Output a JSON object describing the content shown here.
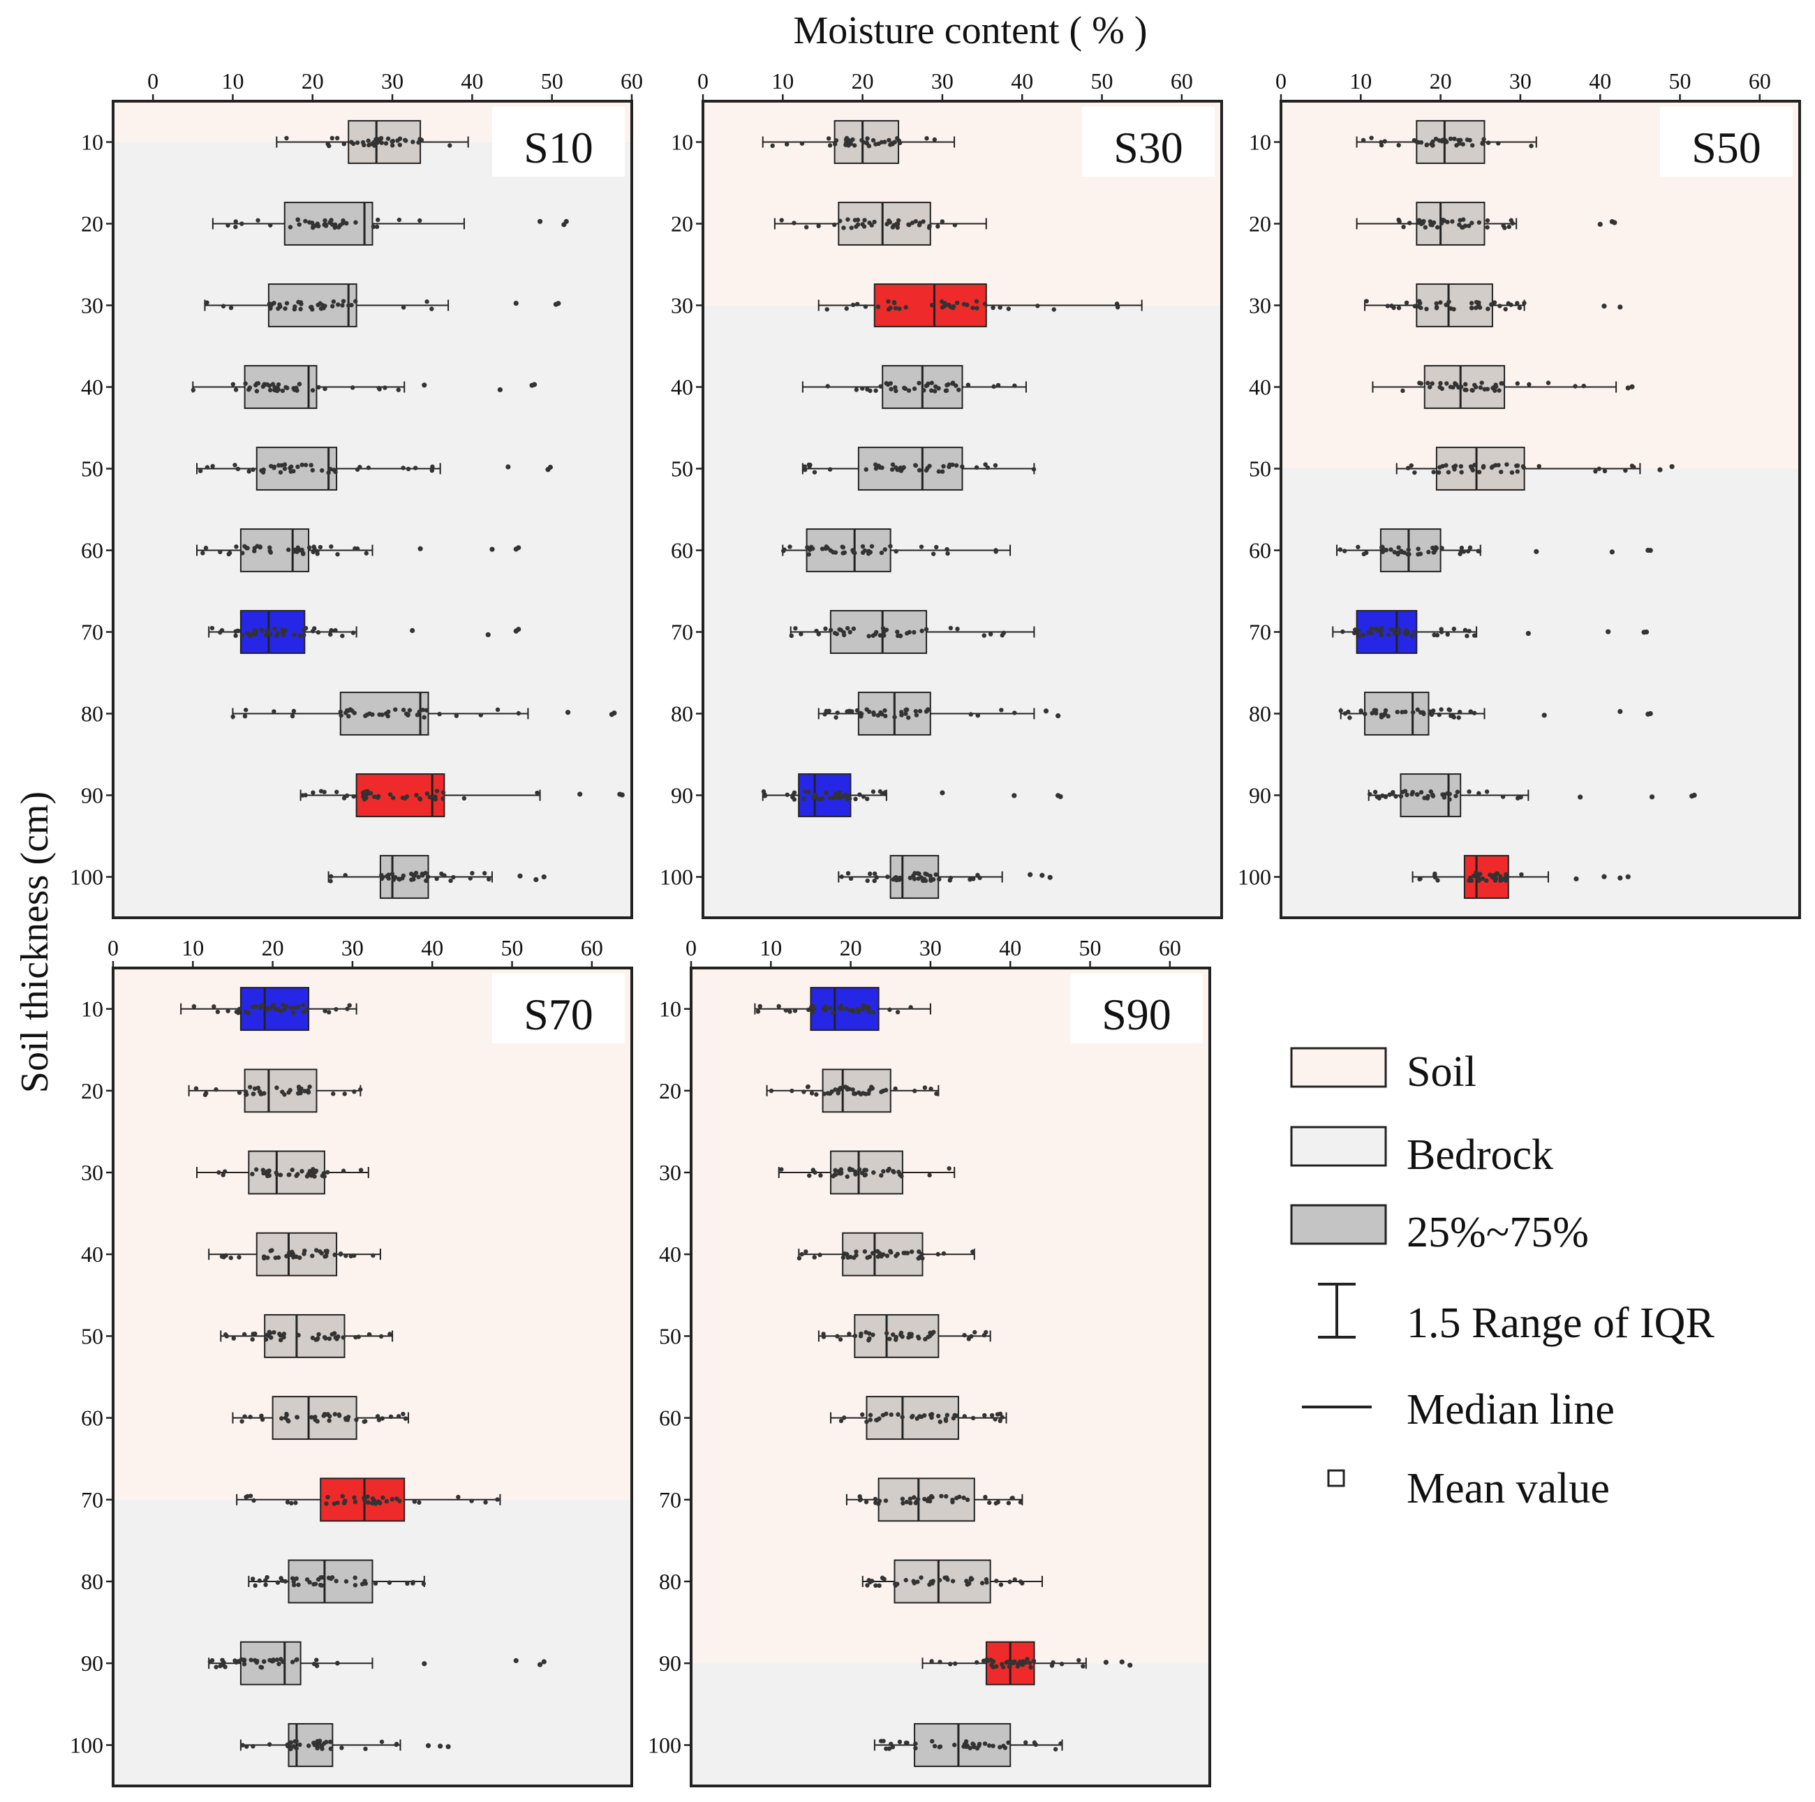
{
  "figure": {
    "x_axis_title": "Moisture content ( % )",
    "y_axis_title": "Soil thickness (cm)"
  },
  "legend": {
    "items": [
      {
        "key": "soil",
        "label": "Soil"
      },
      {
        "key": "bedrock",
        "label": "Bedrock"
      },
      {
        "key": "iqr",
        "label": "25%~75%"
      },
      {
        "key": "whisker",
        "label": "1.5 Range of IQR"
      },
      {
        "key": "median",
        "label": "Median line"
      },
      {
        "key": "mean",
        "label": "Mean value"
      }
    ]
  },
  "colors": {
    "soil_bg": "#fdf3ee",
    "bedrock_bg": "#f1f1f1",
    "box_soil": "#d3cdc9",
    "box_bedrock": "#c4c4c4",
    "box_max": "#ee2a2a",
    "box_min": "#2626e6",
    "dot": "#333333",
    "frame": "#222222"
  },
  "chart_data": [
    {
      "type": "box",
      "title": "S10",
      "xlabel": "Moisture content ( % )",
      "ylabel": "Soil thickness (cm)",
      "xlim": [
        -5,
        60
      ],
      "xticks": [
        0,
        10,
        20,
        30,
        40,
        50,
        60
      ],
      "depths": [
        10,
        20,
        30,
        40,
        50,
        60,
        70,
        80,
        90,
        100
      ],
      "soil_bedrock_boundary_cm": 10,
      "boxes": [
        {
          "depth": 10,
          "whisker_low": 15.5,
          "q1": 24.5,
          "median": 28,
          "q3": 33.5,
          "whisker_high": 39.5,
          "outliers": [],
          "highlight": "none",
          "layer": "soil"
        },
        {
          "depth": 20,
          "whisker_low": 7.5,
          "q1": 16.5,
          "median": 26.5,
          "q3": 27.5,
          "whisker_high": 39,
          "outliers": [
            48.5,
            51.5,
            51.8
          ],
          "highlight": "none",
          "layer": "bedrock"
        },
        {
          "depth": 30,
          "whisker_low": 6.5,
          "q1": 14.5,
          "median": 24.5,
          "q3": 25.5,
          "whisker_high": 37,
          "outliers": [
            45.5,
            50.5,
            50.8
          ],
          "highlight": "none",
          "layer": "bedrock"
        },
        {
          "depth": 40,
          "whisker_low": 5,
          "q1": 11.5,
          "median": 19.5,
          "q3": 20.5,
          "whisker_high": 31.5,
          "outliers": [
            34,
            43.5,
            47.5,
            47.8
          ],
          "highlight": "none",
          "layer": "bedrock"
        },
        {
          "depth": 50,
          "whisker_low": 5.5,
          "q1": 13,
          "median": 22,
          "q3": 23,
          "whisker_high": 36,
          "outliers": [
            44.5,
            49.5,
            49.8
          ],
          "highlight": "none",
          "layer": "bedrock"
        },
        {
          "depth": 60,
          "whisker_low": 5.5,
          "q1": 11,
          "median": 17.5,
          "q3": 19.5,
          "whisker_high": 27.5,
          "outliers": [
            33.5,
            42.5,
            45.5,
            45.8
          ],
          "highlight": "none",
          "layer": "bedrock"
        },
        {
          "depth": 70,
          "whisker_low": 7,
          "q1": 11,
          "median": 14.5,
          "q3": 19,
          "whisker_high": 25.5,
          "outliers": [
            32.5,
            42,
            45.5,
            45.8
          ],
          "highlight": "min",
          "layer": "bedrock"
        },
        {
          "depth": 80,
          "whisker_low": 10,
          "q1": 23.5,
          "median": 33.5,
          "q3": 34.5,
          "whisker_high": 47,
          "outliers": [
            52,
            57.5,
            57.8
          ],
          "highlight": "none",
          "layer": "bedrock"
        },
        {
          "depth": 90,
          "whisker_low": 18.5,
          "q1": 25.5,
          "median": 35,
          "q3": 36.5,
          "whisker_high": 48.5,
          "outliers": [
            53.5,
            58.5,
            58.8
          ],
          "highlight": "max",
          "layer": "bedrock"
        },
        {
          "depth": 100,
          "whisker_low": 22,
          "q1": 28.5,
          "median": 30,
          "q3": 34.5,
          "whisker_high": 42.5,
          "outliers": [
            46,
            48,
            49
          ],
          "highlight": "none",
          "layer": "bedrock"
        }
      ]
    },
    {
      "type": "box",
      "title": "S30",
      "xlabel": "Moisture content ( % )",
      "ylabel": "Soil thickness (cm)",
      "xlim": [
        0,
        65
      ],
      "xticks": [
        0,
        10,
        20,
        30,
        40,
        50,
        60
      ],
      "depths": [
        10,
        20,
        30,
        40,
        50,
        60,
        70,
        80,
        90,
        100
      ],
      "soil_bedrock_boundary_cm": 30,
      "boxes": [
        {
          "depth": 10,
          "whisker_low": 7.5,
          "q1": 16.5,
          "median": 20,
          "q3": 24.5,
          "whisker_high": 31.5,
          "outliers": [],
          "highlight": "none",
          "layer": "soil"
        },
        {
          "depth": 20,
          "whisker_low": 9,
          "q1": 17,
          "median": 22.5,
          "q3": 28.5,
          "whisker_high": 35.5,
          "outliers": [],
          "highlight": "none",
          "layer": "soil"
        },
        {
          "depth": 30,
          "whisker_low": 14.5,
          "q1": 21.5,
          "median": 29,
          "q3": 35.5,
          "whisker_high": 55,
          "outliers": [],
          "highlight": "max",
          "layer": "soil"
        },
        {
          "depth": 40,
          "whisker_low": 12.5,
          "q1": 22.5,
          "median": 27.5,
          "q3": 32.5,
          "whisker_high": 40.5,
          "outliers": [],
          "highlight": "none",
          "layer": "bedrock"
        },
        {
          "depth": 50,
          "whisker_low": 12.5,
          "q1": 19.5,
          "median": 27.5,
          "q3": 32.5,
          "whisker_high": 41.5,
          "outliers": [],
          "highlight": "none",
          "layer": "bedrock"
        },
        {
          "depth": 60,
          "whisker_low": 10,
          "q1": 13,
          "median": 19,
          "q3": 23.5,
          "whisker_high": 38.5,
          "outliers": [],
          "highlight": "none",
          "layer": "bedrock"
        },
        {
          "depth": 70,
          "whisker_low": 11,
          "q1": 16,
          "median": 22.5,
          "q3": 28,
          "whisker_high": 41.5,
          "outliers": [],
          "highlight": "none",
          "layer": "bedrock"
        },
        {
          "depth": 80,
          "whisker_low": 14.5,
          "q1": 19.5,
          "median": 24,
          "q3": 28.5,
          "whisker_high": 41.5,
          "outliers": [
            43,
            44.5
          ],
          "highlight": "none",
          "layer": "bedrock"
        },
        {
          "depth": 90,
          "whisker_low": 7.5,
          "q1": 12,
          "median": 14,
          "q3": 18.5,
          "whisker_high": 23,
          "outliers": [
            30,
            39,
            44.5,
            44.8
          ],
          "highlight": "min",
          "layer": "bedrock"
        },
        {
          "depth": 100,
          "whisker_low": 17,
          "q1": 23.5,
          "median": 25,
          "q3": 29.5,
          "whisker_high": 37.5,
          "outliers": [
            41,
            42.5,
            43.5
          ],
          "highlight": "none",
          "layer": "bedrock"
        }
      ]
    },
    {
      "type": "box",
      "title": "S50",
      "xlabel": "Moisture content ( % )",
      "ylabel": "Soil thickness (cm)",
      "xlim": [
        0,
        65
      ],
      "xticks": [
        0,
        10,
        20,
        30,
        40,
        50,
        60
      ],
      "depths": [
        10,
        20,
        30,
        40,
        50,
        60,
        70,
        80,
        90,
        100
      ],
      "soil_bedrock_boundary_cm": 50,
      "boxes": [
        {
          "depth": 10,
          "whisker_low": 9.5,
          "q1": 17,
          "median": 20.5,
          "q3": 25.5,
          "whisker_high": 32,
          "outliers": [],
          "highlight": "none",
          "layer": "soil"
        },
        {
          "depth": 20,
          "whisker_low": 9.5,
          "q1": 17,
          "median": 20,
          "q3": 25.5,
          "whisker_high": 29.5,
          "outliers": [
            40,
            41.5,
            41.8
          ],
          "highlight": "none",
          "layer": "soil"
        },
        {
          "depth": 30,
          "whisker_low": 10.5,
          "q1": 17,
          "median": 21,
          "q3": 26.5,
          "whisker_high": 30.5,
          "outliers": [
            40.5,
            42.5
          ],
          "highlight": "none",
          "layer": "soil"
        },
        {
          "depth": 40,
          "whisker_low": 11.5,
          "q1": 18,
          "median": 22.5,
          "q3": 28,
          "whisker_high": 42,
          "outliers": [
            43.5,
            44
          ],
          "highlight": "none",
          "layer": "soil"
        },
        {
          "depth": 50,
          "whisker_low": 14.5,
          "q1": 19.5,
          "median": 24.5,
          "q3": 30.5,
          "whisker_high": 45,
          "outliers": [
            47.5,
            49
          ],
          "highlight": "none",
          "layer": "soil"
        },
        {
          "depth": 60,
          "whisker_low": 7,
          "q1": 12.5,
          "median": 16,
          "q3": 20,
          "whisker_high": 25,
          "outliers": [
            32,
            41.5,
            46,
            46.3
          ],
          "highlight": "none",
          "layer": "bedrock"
        },
        {
          "depth": 70,
          "whisker_low": 6.5,
          "q1": 9.5,
          "median": 14.5,
          "q3": 17,
          "whisker_high": 24.5,
          "outliers": [
            31,
            41,
            45.5,
            45.8
          ],
          "highlight": "min",
          "layer": "bedrock"
        },
        {
          "depth": 80,
          "whisker_low": 7.5,
          "q1": 10.5,
          "median": 16.5,
          "q3": 18.5,
          "whisker_high": 25.5,
          "outliers": [
            33,
            42.5,
            46,
            46.3
          ],
          "highlight": "none",
          "layer": "bedrock"
        },
        {
          "depth": 90,
          "whisker_low": 11,
          "q1": 15,
          "median": 21,
          "q3": 22.5,
          "whisker_high": 31,
          "outliers": [
            37.5,
            46.5,
            51.5,
            51.8
          ],
          "highlight": "none",
          "layer": "bedrock"
        },
        {
          "depth": 100,
          "whisker_low": 16.5,
          "q1": 23,
          "median": 24.5,
          "q3": 28.5,
          "whisker_high": 33.5,
          "outliers": [
            37,
            40.5,
            42.5,
            43.5
          ],
          "highlight": "max",
          "layer": "bedrock"
        }
      ]
    },
    {
      "type": "box",
      "title": "S70",
      "xlabel": "Moisture content ( % )",
      "ylabel": "Soil thickness (cm)",
      "xlim": [
        0,
        65
      ],
      "xticks": [
        0,
        10,
        20,
        30,
        40,
        50,
        60
      ],
      "depths": [
        10,
        20,
        30,
        40,
        50,
        60,
        70,
        80,
        90,
        100
      ],
      "soil_bedrock_boundary_cm": 70,
      "boxes": [
        {
          "depth": 10,
          "whisker_low": 8.5,
          "q1": 16,
          "median": 19,
          "q3": 24.5,
          "whisker_high": 30.5,
          "outliers": [],
          "highlight": "min",
          "layer": "soil"
        },
        {
          "depth": 20,
          "whisker_low": 9.5,
          "q1": 16.5,
          "median": 19.5,
          "q3": 25.5,
          "whisker_high": 31,
          "outliers": [],
          "highlight": "none",
          "layer": "soil"
        },
        {
          "depth": 30,
          "whisker_low": 10.5,
          "q1": 17,
          "median": 20.5,
          "q3": 26.5,
          "whisker_high": 32,
          "outliers": [],
          "highlight": "none",
          "layer": "soil"
        },
        {
          "depth": 40,
          "whisker_low": 12,
          "q1": 18,
          "median": 22,
          "q3": 28,
          "whisker_high": 33.5,
          "outliers": [],
          "highlight": "none",
          "layer": "soil"
        },
        {
          "depth": 50,
          "whisker_low": 13.5,
          "q1": 19,
          "median": 23,
          "q3": 29,
          "whisker_high": 35,
          "outliers": [],
          "highlight": "none",
          "layer": "soil"
        },
        {
          "depth": 60,
          "whisker_low": 15,
          "q1": 20,
          "median": 24.5,
          "q3": 30.5,
          "whisker_high": 37,
          "outliers": [],
          "highlight": "none",
          "layer": "soil"
        },
        {
          "depth": 70,
          "whisker_low": 15.5,
          "q1": 26,
          "median": 31.5,
          "q3": 36.5,
          "whisker_high": 48.5,
          "outliers": [],
          "highlight": "max",
          "layer": "soil"
        },
        {
          "depth": 80,
          "whisker_low": 17,
          "q1": 22,
          "median": 26.5,
          "q3": 32.5,
          "whisker_high": 39,
          "outliers": [],
          "highlight": "none",
          "layer": "bedrock"
        },
        {
          "depth": 90,
          "whisker_low": 12,
          "q1": 16,
          "median": 21.5,
          "q3": 23.5,
          "whisker_high": 32.5,
          "outliers": [
            39,
            50.5,
            53.5,
            54
          ],
          "highlight": "none",
          "layer": "bedrock"
        },
        {
          "depth": 100,
          "whisker_low": 16,
          "q1": 22,
          "median": 23,
          "q3": 27.5,
          "whisker_high": 36,
          "outliers": [
            39.5,
            41,
            42
          ],
          "highlight": "none",
          "layer": "bedrock"
        }
      ]
    },
    {
      "type": "box",
      "title": "S90",
      "xlabel": "Moisture content ( % )",
      "ylabel": "Soil thickness (cm)",
      "xlim": [
        0,
        65
      ],
      "xticks": [
        0,
        10,
        20,
        30,
        40,
        50,
        60
      ],
      "depths": [
        10,
        20,
        30,
        40,
        50,
        60,
        70,
        80,
        90,
        100
      ],
      "soil_bedrock_boundary_cm": 90,
      "boxes": [
        {
          "depth": 10,
          "whisker_low": 8,
          "q1": 15,
          "median": 18,
          "q3": 23.5,
          "whisker_high": 30,
          "outliers": [],
          "highlight": "min",
          "layer": "soil"
        },
        {
          "depth": 20,
          "whisker_low": 9.5,
          "q1": 16.5,
          "median": 19,
          "q3": 25,
          "whisker_high": 31,
          "outliers": [],
          "highlight": "none",
          "layer": "soil"
        },
        {
          "depth": 30,
          "whisker_low": 11,
          "q1": 17.5,
          "median": 21,
          "q3": 26.5,
          "whisker_high": 33,
          "outliers": [],
          "highlight": "none",
          "layer": "soil"
        },
        {
          "depth": 40,
          "whisker_low": 13.5,
          "q1": 19,
          "median": 23,
          "q3": 29,
          "whisker_high": 35.5,
          "outliers": [],
          "highlight": "none",
          "layer": "soil"
        },
        {
          "depth": 50,
          "whisker_low": 16,
          "q1": 20.5,
          "median": 24.5,
          "q3": 31,
          "whisker_high": 37.5,
          "outliers": [],
          "highlight": "none",
          "layer": "soil"
        },
        {
          "depth": 60,
          "whisker_low": 17.5,
          "q1": 22,
          "median": 26.5,
          "q3": 33.5,
          "whisker_high": 39.5,
          "outliers": [],
          "highlight": "none",
          "layer": "soil"
        },
        {
          "depth": 70,
          "whisker_low": 19.5,
          "q1": 23.5,
          "median": 28.5,
          "q3": 35.5,
          "whisker_high": 41.5,
          "outliers": [],
          "highlight": "none",
          "layer": "soil"
        },
        {
          "depth": 80,
          "whisker_low": 21.5,
          "q1": 25.5,
          "median": 31,
          "q3": 37.5,
          "whisker_high": 44,
          "outliers": [],
          "highlight": "none",
          "layer": "soil"
        },
        {
          "depth": 90,
          "whisker_low": 29,
          "q1": 37,
          "median": 40,
          "q3": 43,
          "whisker_high": 49.5,
          "outliers": [
            52,
            54,
            55
          ],
          "highlight": "max",
          "layer": "soil"
        },
        {
          "depth": 100,
          "whisker_low": 23,
          "q1": 28,
          "median": 33.5,
          "q3": 40,
          "whisker_high": 46.5,
          "outliers": [],
          "highlight": "none",
          "layer": "bedrock"
        }
      ]
    }
  ]
}
